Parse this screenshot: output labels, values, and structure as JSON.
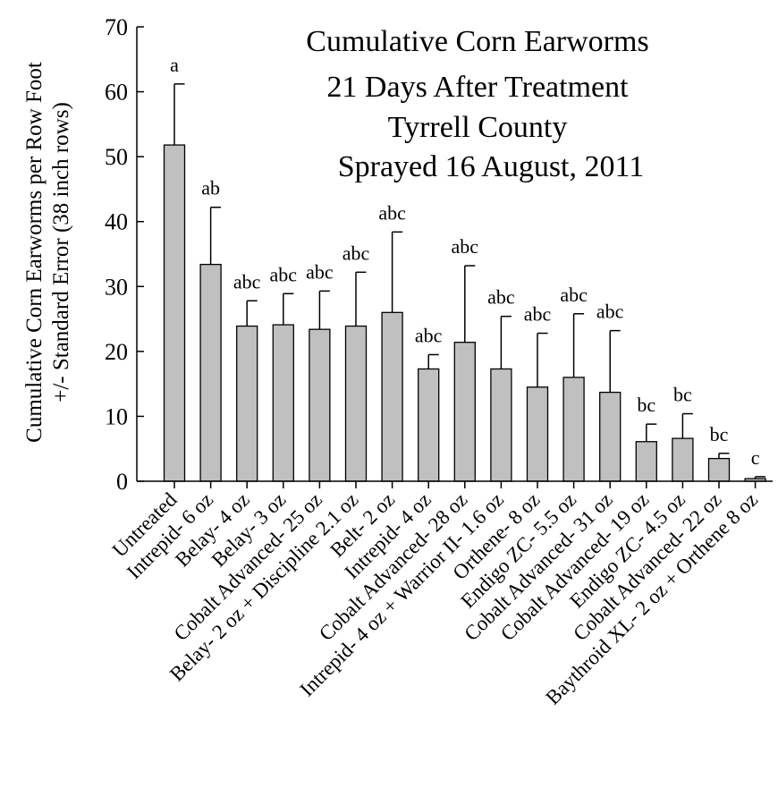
{
  "chart_data": {
    "type": "bar",
    "title_lines": [
      "Cumulative Corn Earworms",
      "21 Days After Treatment",
      "Tyrrell County",
      "Sprayed 16 August, 2011"
    ],
    "ylabel_lines": [
      "Cumulative Corn Earworms per Row Foot",
      "+/- Standard Error (38 inch rows)"
    ],
    "xlabel": "",
    "ylim": [
      0,
      70
    ],
    "yticks": [
      0,
      10,
      20,
      30,
      40,
      50,
      60,
      70
    ],
    "grid": false,
    "bar_color": "#c0c0c0",
    "categories": [
      "Untreated",
      "Intrepid- 6 oz",
      "Belay- 4 oz",
      "Belay- 3 oz",
      "Cobalt Advanced- 25 oz",
      "Belay- 2 oz + Discipline 2.1 oz",
      "Belt- 2 oz",
      "Intrepid- 4 oz",
      "Cobalt Advanced- 28 oz",
      "Intrepid- 4 oz + Warrior II- 1.6 oz",
      "Orthene- 8 oz",
      "Endigo ZC- 5.5 oz",
      "Cobalt Advanced- 31 oz",
      "Cobalt Advanced- 19 oz",
      "Endigo ZC- 4.5 oz",
      "Cobalt Advanced- 22 oz",
      "Baythroid XL- 2 oz + Orthene 8 oz"
    ],
    "values": [
      51.8,
      33.4,
      23.9,
      24.1,
      23.4,
      23.9,
      26.0,
      17.3,
      21.4,
      17.3,
      14.5,
      16.0,
      13.7,
      6.1,
      6.6,
      3.5,
      0.4
    ],
    "errors": [
      9.4,
      8.8,
      3.9,
      4.8,
      5.9,
      8.3,
      12.4,
      2.2,
      11.8,
      8.1,
      8.3,
      9.8,
      9.5,
      2.7,
      3.8,
      0.8,
      0.3
    ],
    "significance_letters": [
      "a",
      "ab",
      "abc",
      "abc",
      "abc",
      "abc",
      "abc",
      "abc",
      "abc",
      "abc",
      "abc",
      "abc",
      "abc",
      "bc",
      "bc",
      "bc",
      "c"
    ]
  }
}
